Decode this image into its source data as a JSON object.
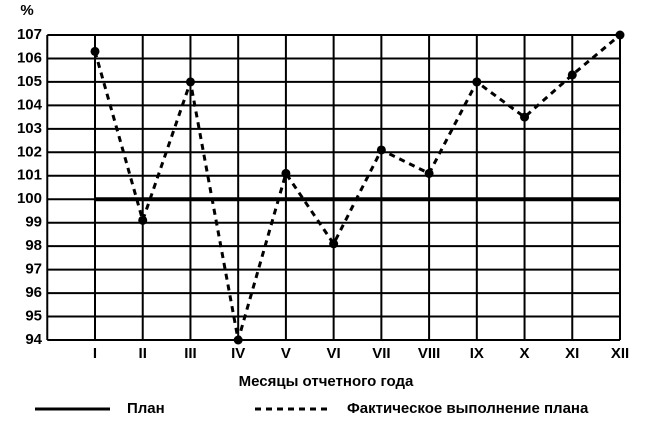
{
  "chart_data": {
    "type": "line",
    "y_label": "%",
    "x_label": "Месяцы отчетного года",
    "categories": [
      "I",
      "II",
      "III",
      "IV",
      "V",
      "VI",
      "VII",
      "VIII",
      "IX",
      "X",
      "XI",
      "XII"
    ],
    "series": [
      {
        "name": "План",
        "color": "#000000",
        "style": "solid",
        "marker": false,
        "values": [
          100,
          100,
          100,
          100,
          100,
          100,
          100,
          100,
          100,
          100,
          100,
          100
        ]
      },
      {
        "name": "Фактическое выполнение плана",
        "color": "#000000",
        "style": "dashed",
        "marker": true,
        "values": [
          106.3,
          99.1,
          105,
          94,
          101.1,
          98.1,
          102.1,
          101.1,
          105,
          103.5,
          105.3,
          107
        ]
      }
    ],
    "ylim": [
      94,
      107
    ],
    "yticks": [
      94,
      95,
      96,
      97,
      98,
      99,
      100,
      101,
      102,
      103,
      104,
      105,
      106,
      107
    ],
    "grid": true,
    "legend": "bottom"
  }
}
